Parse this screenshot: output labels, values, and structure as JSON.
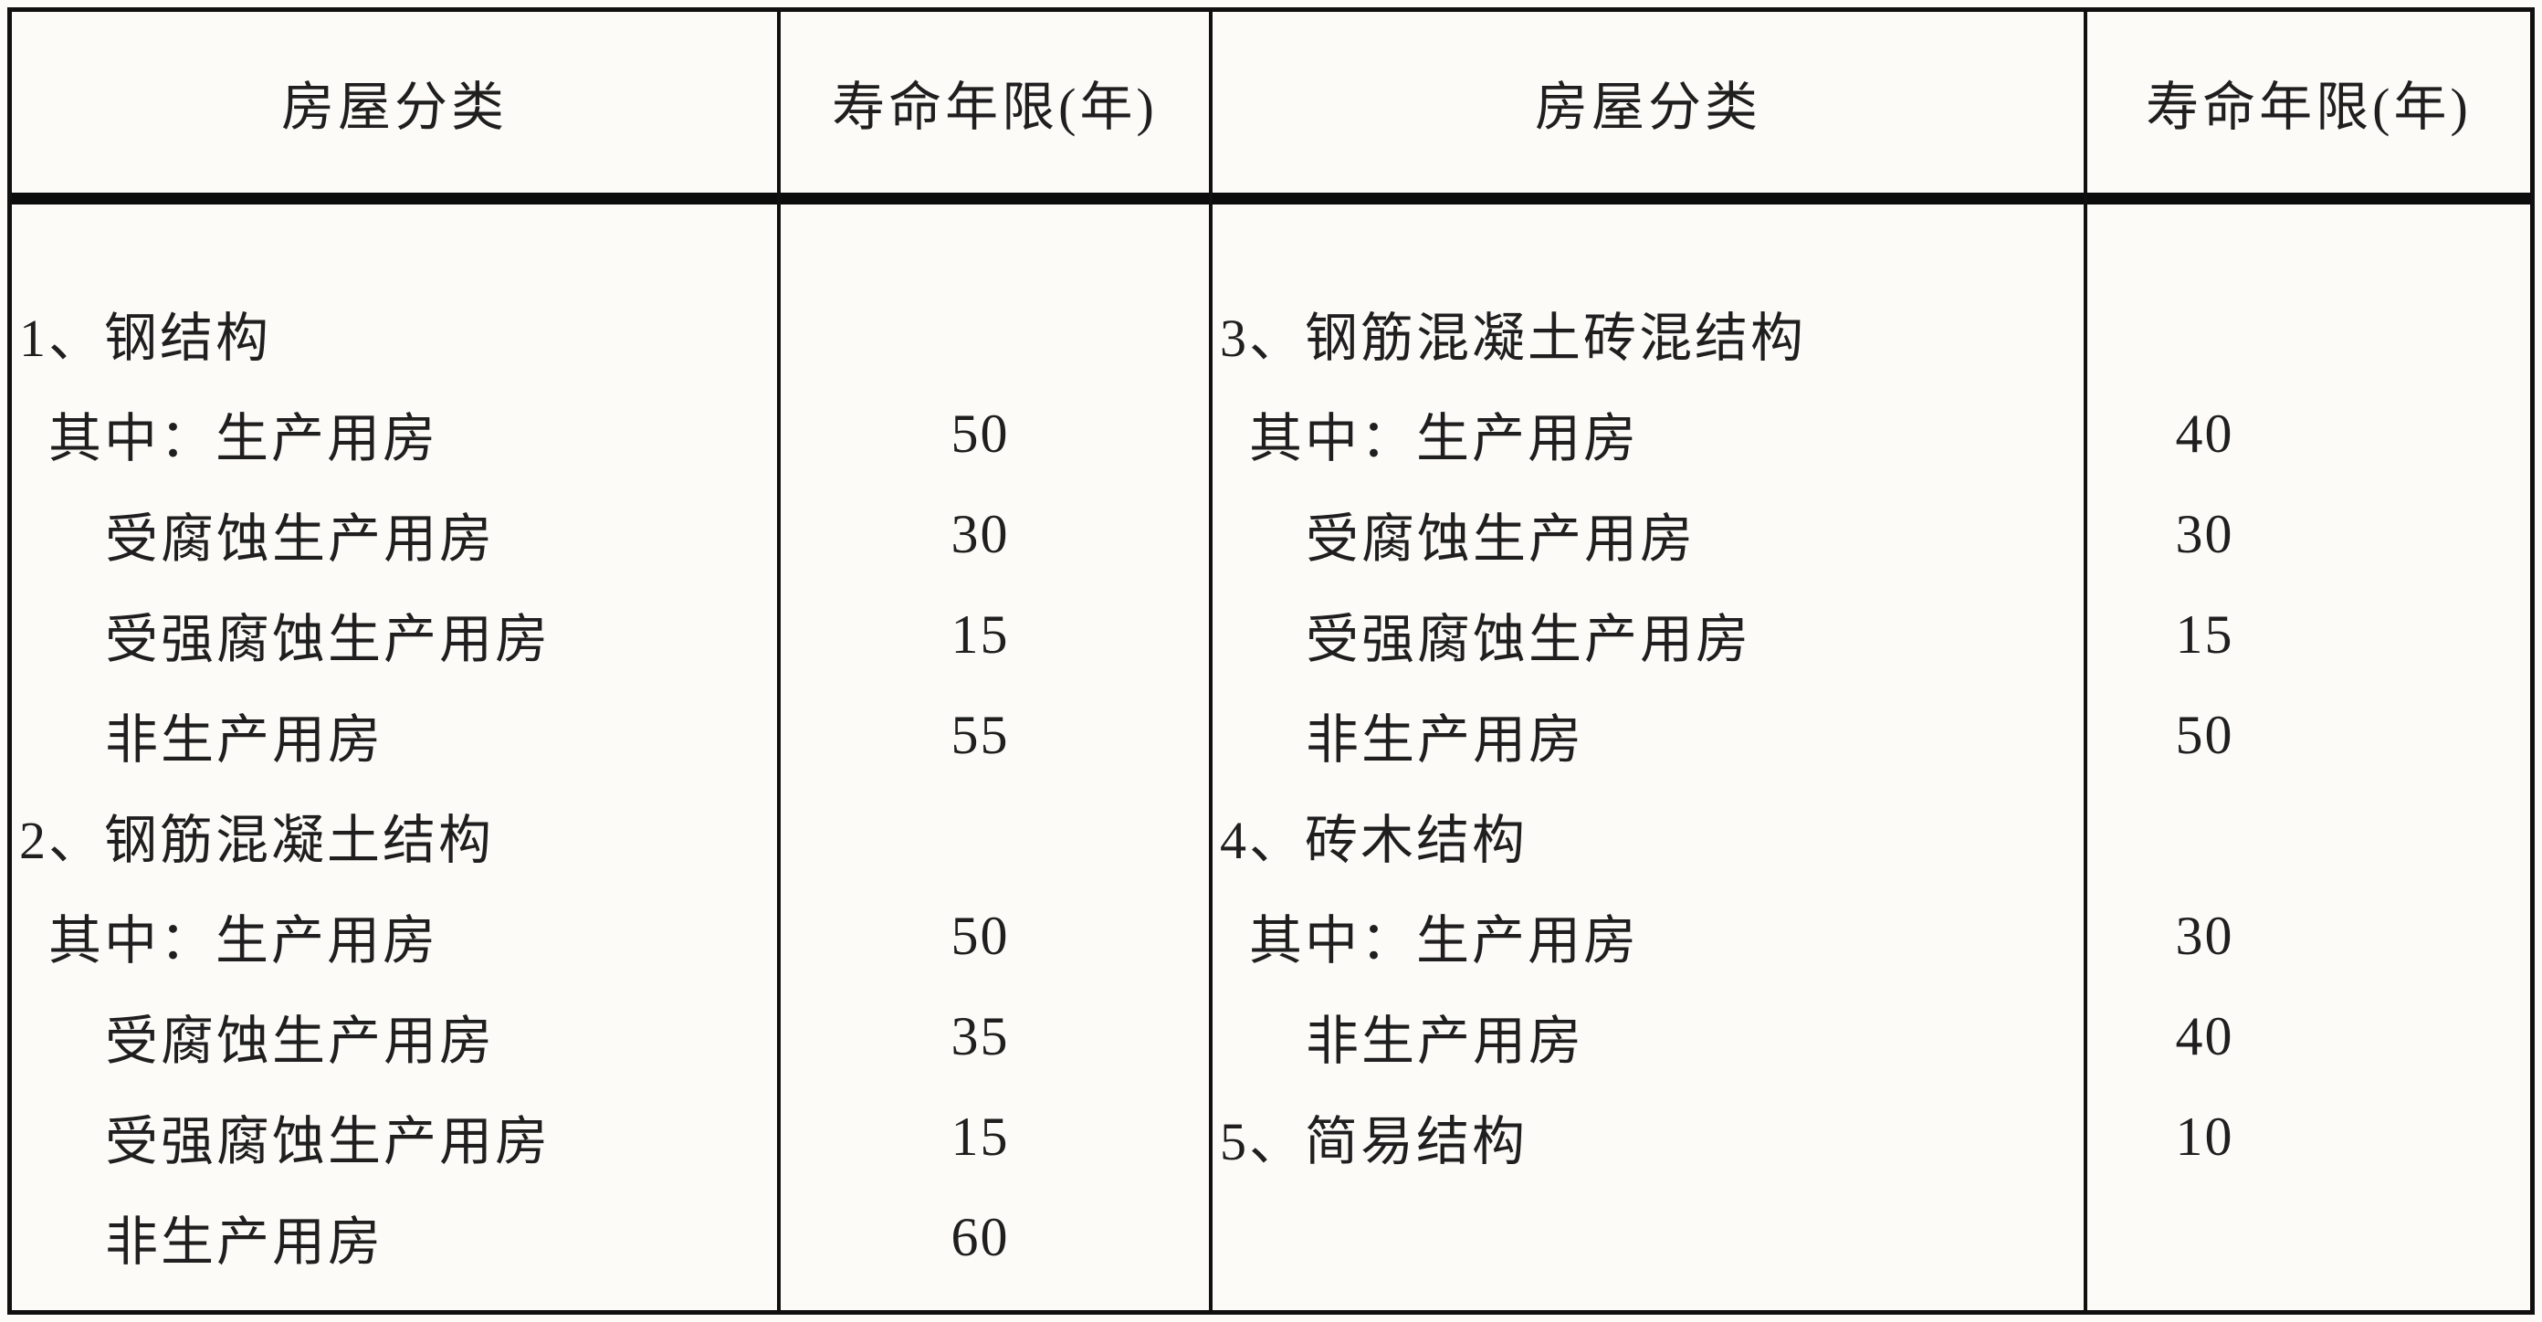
{
  "table": {
    "title_semantic": "房屋分类与寿命年限表",
    "colors": {
      "border": "#101010",
      "text": "#1f1f1f",
      "background": "#fcfbf8"
    },
    "header": {
      "house_class_left": "房屋分类",
      "lifespan_left": "寿命年限(年)",
      "house_class_right": "房屋分类",
      "lifespan_right": "寿命年限(年)"
    },
    "rows": [
      {
        "l": "1、钢结构",
        "lv": "",
        "r": "3、钢筋混凝土砖混结构",
        "rv": ""
      },
      {
        "l": "其中：生产用房",
        "lv": "50",
        "r": "其中：生产用房",
        "rv": "40"
      },
      {
        "l": "受腐蚀生产用房",
        "lv": "30",
        "r": "受腐蚀生产用房",
        "rv": "30"
      },
      {
        "l": "受强腐蚀生产用房",
        "lv": "15",
        "r": "受强腐蚀生产用房",
        "rv": "15"
      },
      {
        "l": "非生产用房",
        "lv": "55",
        "r": "非生产用房",
        "rv": "50"
      },
      {
        "l": "2、钢筋混凝土结构",
        "lv": "",
        "r": "4、砖木结构",
        "rv": ""
      },
      {
        "l": "其中：生产用房",
        "lv": "50",
        "r": "其中：生产用房",
        "rv": "30"
      },
      {
        "l": "受腐蚀生产用房",
        "lv": "35",
        "r": "非生产用房",
        "rv": "40"
      },
      {
        "l": "受强腐蚀生产用房",
        "lv": "15",
        "r": "5、简易结构",
        "rv": "10"
      },
      {
        "l": "非生产用房",
        "lv": "60",
        "r": "",
        "rv": ""
      }
    ]
  }
}
